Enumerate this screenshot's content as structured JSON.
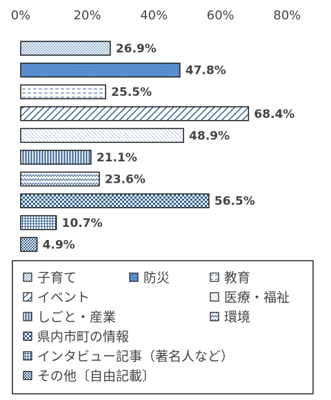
{
  "chart_data": {
    "type": "bar",
    "orientation": "horizontal",
    "xlim": [
      0,
      80
    ],
    "ticks": [
      "0%",
      "20%",
      "40%",
      "60%",
      "80%"
    ],
    "tick_values": [
      0,
      20,
      40,
      60,
      80
    ],
    "categories": [
      "子育て",
      "防災",
      "教育",
      "イベント",
      "医療・福祉",
      "しごと・産業",
      "環境",
      "県内市町の情報",
      "インタビュー記事（著名人など）",
      "その他〔自由記載〕"
    ],
    "values": [
      26.9,
      47.8,
      25.5,
      68.4,
      48.9,
      21.1,
      23.6,
      56.5,
      10.7,
      4.9
    ],
    "data_labels": [
      "26.9%",
      "47.8%",
      "25.5%",
      "68.4%",
      "48.9%",
      "21.1%",
      "23.6%",
      "56.5%",
      "10.7%",
      "4.9%"
    ],
    "grid": false,
    "legend_position": "bottom",
    "colors": {
      "fill_light": "#dbe9f6",
      "fill_solid": "#5b8fd0",
      "pattern": "#2f5d94",
      "border": "#1c1c1c"
    }
  }
}
